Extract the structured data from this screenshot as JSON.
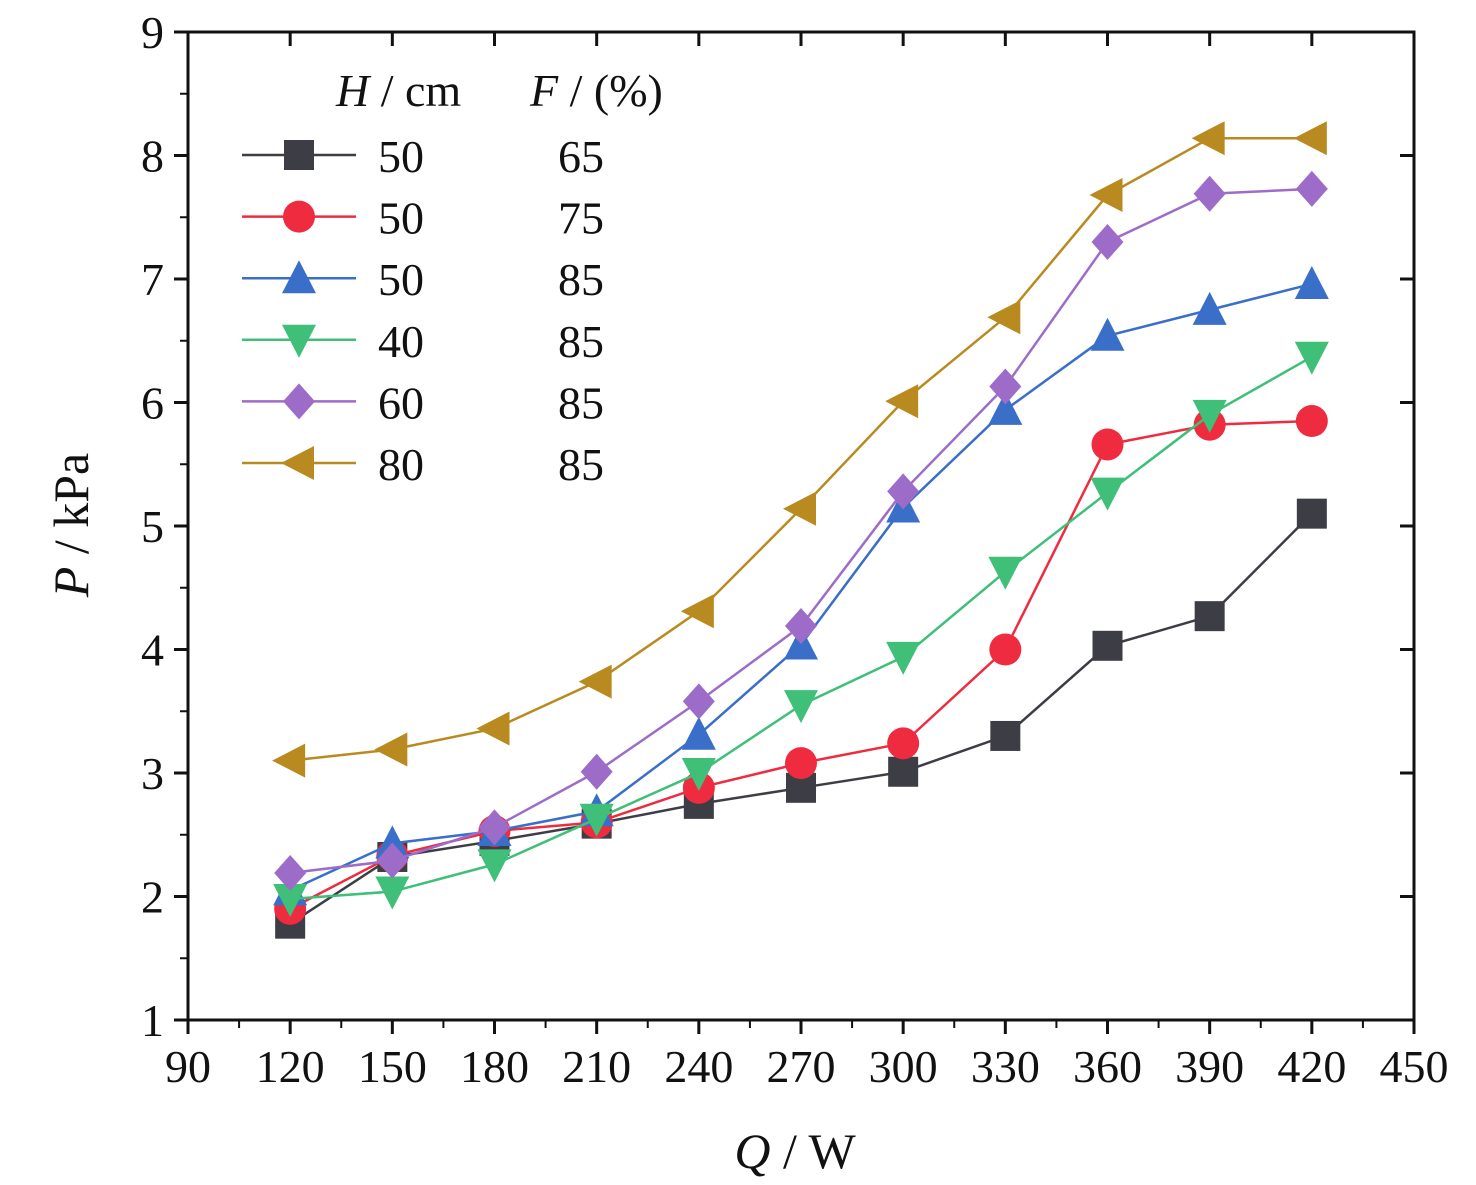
{
  "chart_data": {
    "type": "line",
    "xlabel": {
      "var": "Q",
      "unit": " / W"
    },
    "ylabel": {
      "var": "P",
      "unit": " / kPa"
    },
    "xlim": [
      90,
      450
    ],
    "ylim": [
      1,
      9
    ],
    "xticks": [
      90,
      120,
      150,
      180,
      210,
      240,
      270,
      300,
      330,
      360,
      390,
      420,
      450
    ],
    "yticks": [
      1,
      2,
      3,
      4,
      5,
      6,
      7,
      8,
      9
    ],
    "grid": false,
    "legend_placement": "top-left",
    "legend_header": {
      "h_var": "H",
      "h_unit": " / cm",
      "f_var": "F",
      "f_unit": " / (%)"
    },
    "x": [
      120,
      150,
      180,
      210,
      240,
      270,
      300,
      330,
      360,
      390,
      420
    ],
    "series": [
      {
        "h": "50",
        "f": "65",
        "color": "#3d3d45",
        "marker": "square",
        "values": [
          1.78,
          2.32,
          2.45,
          2.59,
          2.75,
          2.88,
          3.01,
          3.3,
          4.03,
          4.27,
          5.1
        ]
      },
      {
        "h": "50",
        "f": "75",
        "color": "#ef2b3f",
        "marker": "circle",
        "values": [
          1.9,
          2.33,
          2.53,
          2.6,
          2.88,
          3.08,
          3.24,
          4.0,
          5.66,
          5.82,
          5.85
        ]
      },
      {
        "h": "50",
        "f": "85",
        "color": "#3a6fc9",
        "marker": "triangle-up",
        "values": [
          2.05,
          2.43,
          2.53,
          2.69,
          3.31,
          4.04,
          5.15,
          5.94,
          6.54,
          6.75,
          6.96
        ]
      },
      {
        "h": "40",
        "f": "85",
        "color": "#3fbf78",
        "marker": "triangle-down",
        "values": [
          1.98,
          2.04,
          2.26,
          2.63,
          3.0,
          3.55,
          3.94,
          4.63,
          5.27,
          5.9,
          6.37
        ]
      },
      {
        "h": "60",
        "f": "85",
        "color": "#9d6cc8",
        "marker": "diamond",
        "values": [
          2.19,
          2.29,
          2.56,
          3.01,
          3.58,
          4.19,
          5.28,
          6.13,
          7.3,
          7.69,
          7.73
        ]
      },
      {
        "h": "80",
        "f": "85",
        "color": "#b98a1f",
        "marker": "triangle-left",
        "values": [
          3.1,
          3.19,
          3.36,
          3.74,
          4.31,
          5.14,
          6.01,
          6.69,
          7.68,
          8.14,
          8.14
        ]
      }
    ]
  }
}
